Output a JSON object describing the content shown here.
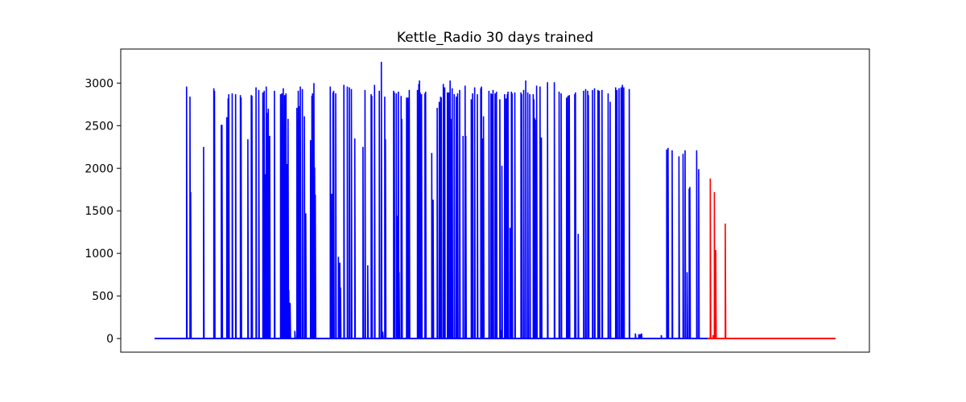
{
  "chart_data": {
    "type": "line",
    "title": "Kettle_Radio 30 days trained",
    "xlabel": "",
    "ylabel": "",
    "x_ticks_visible": false,
    "ylim": [
      -160,
      3400
    ],
    "xlim": [
      0,
      1000
    ],
    "yticks": [
      0,
      500,
      1000,
      1500,
      2000,
      2500,
      3000
    ],
    "grid": false,
    "series": [
      {
        "color": "#0000ff",
        "spikes": [
          [
            47,
            2960
          ],
          [
            52,
            2840
          ],
          [
            53,
            1720
          ],
          [
            72,
            2250
          ],
          [
            87,
            2940
          ],
          [
            88,
            2910
          ],
          [
            98,
            2510
          ],
          [
            99,
            2510
          ],
          [
            106,
            2600
          ],
          [
            108,
            2820
          ],
          [
            109,
            2870
          ],
          [
            114,
            2880
          ],
          [
            119,
            2870
          ],
          [
            126,
            2860
          ],
          [
            127,
            2830
          ],
          [
            137,
            2340
          ],
          [
            142,
            2860
          ],
          [
            143,
            2850
          ],
          [
            149,
            2950
          ],
          [
            153,
            2920
          ],
          [
            159,
            2890
          ],
          [
            161,
            2910
          ],
          [
            163,
            1930
          ],
          [
            164,
            2960
          ],
          [
            165,
            2650
          ],
          [
            167,
            2700
          ],
          [
            169,
            2380
          ],
          [
            176,
            2910
          ],
          [
            185,
            2870
          ],
          [
            187,
            2880
          ],
          [
            189,
            2940
          ],
          [
            191,
            2860
          ],
          [
            193,
            2880
          ],
          [
            195,
            2050
          ],
          [
            196,
            2580
          ],
          [
            197,
            570
          ],
          [
            199,
            420
          ],
          [
            206,
            90
          ],
          [
            209,
            2710
          ],
          [
            211,
            2910
          ],
          [
            212,
            2730
          ],
          [
            214,
            2960
          ],
          [
            217,
            2930
          ],
          [
            220,
            2610
          ],
          [
            222,
            1470
          ],
          [
            229,
            2330
          ],
          [
            231,
            2850
          ],
          [
            232,
            2880
          ],
          [
            234,
            3000
          ],
          [
            235,
            2010
          ],
          [
            236,
            1690
          ],
          [
            258,
            2960
          ],
          [
            260,
            1700
          ],
          [
            262,
            2890
          ],
          [
            263,
            2910
          ],
          [
            266,
            2880
          ],
          [
            270,
            960
          ],
          [
            272,
            890
          ],
          [
            273,
            600
          ],
          [
            278,
            2980
          ],
          [
            283,
            2960
          ],
          [
            286,
            2950
          ],
          [
            289,
            2930
          ],
          [
            294,
            2350
          ],
          [
            306,
            2250
          ],
          [
            309,
            2920
          ],
          [
            313,
            860
          ],
          [
            318,
            2870
          ],
          [
            319,
            2850
          ],
          [
            323,
            2980
          ],
          [
            330,
            2910
          ],
          [
            333,
            3250
          ],
          [
            335,
            80
          ],
          [
            338,
            2840
          ],
          [
            339,
            2340
          ],
          [
            351,
            2910
          ],
          [
            352,
            2890
          ],
          [
            355,
            2880
          ],
          [
            356,
            1440
          ],
          [
            358,
            2900
          ],
          [
            359,
            780
          ],
          [
            362,
            2850
          ],
          [
            363,
            2580
          ],
          [
            370,
            2830
          ],
          [
            372,
            2830
          ],
          [
            374,
            2920
          ],
          [
            386,
            2920
          ],
          [
            388,
            2990
          ],
          [
            389,
            3030
          ],
          [
            390,
            2890
          ],
          [
            392,
            2870
          ],
          [
            397,
            2880
          ],
          [
            398,
            2900
          ],
          [
            407,
            2180
          ],
          [
            409,
            1630
          ],
          [
            415,
            2710
          ],
          [
            418,
            2780
          ],
          [
            420,
            2840
          ],
          [
            421,
            2830
          ],
          [
            424,
            2990
          ],
          [
            426,
            2950
          ],
          [
            430,
            2890
          ],
          [
            432,
            2890
          ],
          [
            434,
            3030
          ],
          [
            435,
            2580
          ],
          [
            437,
            2940
          ],
          [
            440,
            2870
          ],
          [
            443,
            2840
          ],
          [
            445,
            2880
          ],
          [
            448,
            2920
          ],
          [
            453,
            2380
          ],
          [
            456,
            2970
          ],
          [
            457,
            2380
          ],
          [
            465,
            2810
          ],
          [
            467,
            2880
          ],
          [
            470,
            2950
          ],
          [
            474,
            2870
          ],
          [
            479,
            2940
          ],
          [
            480,
            2960
          ],
          [
            482,
            2350
          ],
          [
            483,
            2610
          ],
          [
            491,
            2910
          ],
          [
            494,
            2880
          ],
          [
            495,
            2870
          ],
          [
            497,
            2920
          ],
          [
            500,
            2880
          ],
          [
            502,
            2900
          ],
          [
            507,
            2810
          ],
          [
            509,
            100
          ],
          [
            510,
            2030
          ],
          [
            514,
            2870
          ],
          [
            516,
            2820
          ],
          [
            517,
            2810
          ],
          [
            518,
            2870
          ],
          [
            519,
            2900
          ],
          [
            522,
            1300
          ],
          [
            524,
            2900
          ],
          [
            525,
            2880
          ],
          [
            529,
            2890
          ],
          [
            538,
            2890
          ],
          [
            539,
            2870
          ],
          [
            542,
            2920
          ],
          [
            545,
            3030
          ],
          [
            548,
            2890
          ],
          [
            551,
            2870
          ],
          [
            556,
            2870
          ],
          [
            557,
            2810
          ],
          [
            558,
            2590
          ],
          [
            559,
            2570
          ],
          [
            561,
            2970
          ],
          [
            566,
            2960
          ],
          [
            568,
            2360
          ],
          [
            577,
            3010
          ],
          [
            587,
            3010
          ],
          [
            594,
            2900
          ],
          [
            597,
            2880
          ],
          [
            605,
            2830
          ],
          [
            607,
            2850
          ],
          [
            609,
            2860
          ],
          [
            617,
            2870
          ],
          [
            618,
            2890
          ],
          [
            622,
            1230
          ],
          [
            630,
            2910
          ],
          [
            633,
            2930
          ],
          [
            636,
            2910
          ],
          [
            637,
            2860
          ],
          [
            643,
            2920
          ],
          [
            646,
            2940
          ],
          [
            651,
            2920
          ],
          [
            653,
            2910
          ],
          [
            657,
            2920
          ],
          [
            666,
            2880
          ],
          [
            669,
            2780
          ],
          [
            677,
            2950
          ],
          [
            679,
            2920
          ],
          [
            682,
            2940
          ],
          [
            685,
            2950
          ],
          [
            686,
            2920
          ],
          [
            687,
            2980
          ],
          [
            689,
            2950
          ],
          [
            697,
            2930
          ],
          [
            706,
            60
          ],
          [
            711,
            50
          ],
          [
            713,
            50
          ],
          [
            715,
            60
          ],
          [
            744,
            40
          ],
          [
            752,
            2220
          ],
          [
            754,
            2240
          ],
          [
            760,
            2210
          ],
          [
            770,
            2140
          ],
          [
            776,
            2170
          ],
          [
            779,
            2210
          ],
          [
            782,
            780
          ],
          [
            785,
            1760
          ],
          [
            786,
            1780
          ],
          [
            796,
            2210
          ],
          [
            799,
            1990
          ]
        ]
      },
      {
        "color": "#ff0000",
        "spikes": [
          [
            816,
            1880
          ],
          [
            820,
            40
          ],
          [
            822,
            1720
          ],
          [
            824,
            1040
          ],
          [
            838,
            1350
          ]
        ]
      }
    ]
  }
}
